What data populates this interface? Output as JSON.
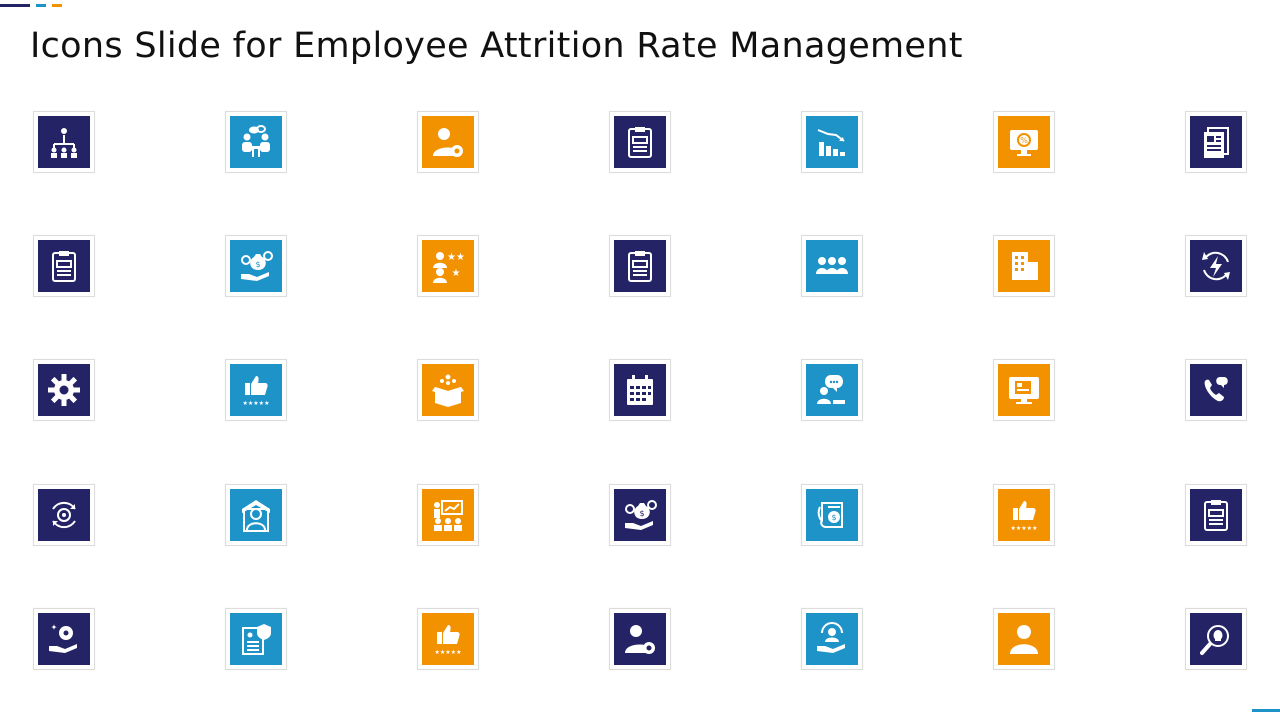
{
  "slide": {
    "title": "Icons Slide for Employee Attrition Rate Management",
    "colors": {
      "navy": "#232366",
      "blue": "#1e93c8",
      "orange": "#f39200"
    }
  },
  "icons": [
    [
      "org-hierarchy-icon",
      "navy"
    ],
    [
      "team-meeting-icon",
      "blue"
    ],
    [
      "user-settings-icon",
      "orange"
    ],
    [
      "clipboard-icon",
      "navy"
    ],
    [
      "declining-chart-icon",
      "blue"
    ],
    [
      "monitor-discount-icon",
      "orange"
    ],
    [
      "document-icon",
      "navy"
    ],
    [
      "clipboard-icon",
      "navy"
    ],
    [
      "money-hand-icon",
      "blue"
    ],
    [
      "employee-rating-icon",
      "orange"
    ],
    [
      "clipboard-icon",
      "navy"
    ],
    [
      "team-group-icon",
      "blue"
    ],
    [
      "office-building-icon",
      "orange"
    ],
    [
      "energy-cycle-icon",
      "navy"
    ],
    [
      "gear-icon",
      "navy"
    ],
    [
      "thumbs-up-rating-icon",
      "blue"
    ],
    [
      "package-box-icon",
      "orange"
    ],
    [
      "calendar-icon",
      "navy"
    ],
    [
      "user-chat-icon",
      "blue"
    ],
    [
      "monitor-document-icon",
      "orange"
    ],
    [
      "phone-chat-icon",
      "navy"
    ],
    [
      "gear-cycle-icon",
      "navy"
    ],
    [
      "employee-protection-icon",
      "blue"
    ],
    [
      "presentation-team-icon",
      "orange"
    ],
    [
      "money-hand-icon",
      "navy"
    ],
    [
      "document-dollar-icon",
      "blue"
    ],
    [
      "thumbs-up-rating-icon",
      "orange"
    ],
    [
      "clipboard-icon",
      "navy"
    ],
    [
      "hand-gear-icon",
      "navy"
    ],
    [
      "document-shield-icon",
      "blue"
    ],
    [
      "thumbs-up-rating-icon",
      "orange"
    ],
    [
      "user-settings-icon",
      "navy"
    ],
    [
      "hand-user-icon",
      "blue"
    ],
    [
      "user-icon",
      "orange"
    ],
    [
      "search-idea-icon",
      "navy"
    ]
  ]
}
